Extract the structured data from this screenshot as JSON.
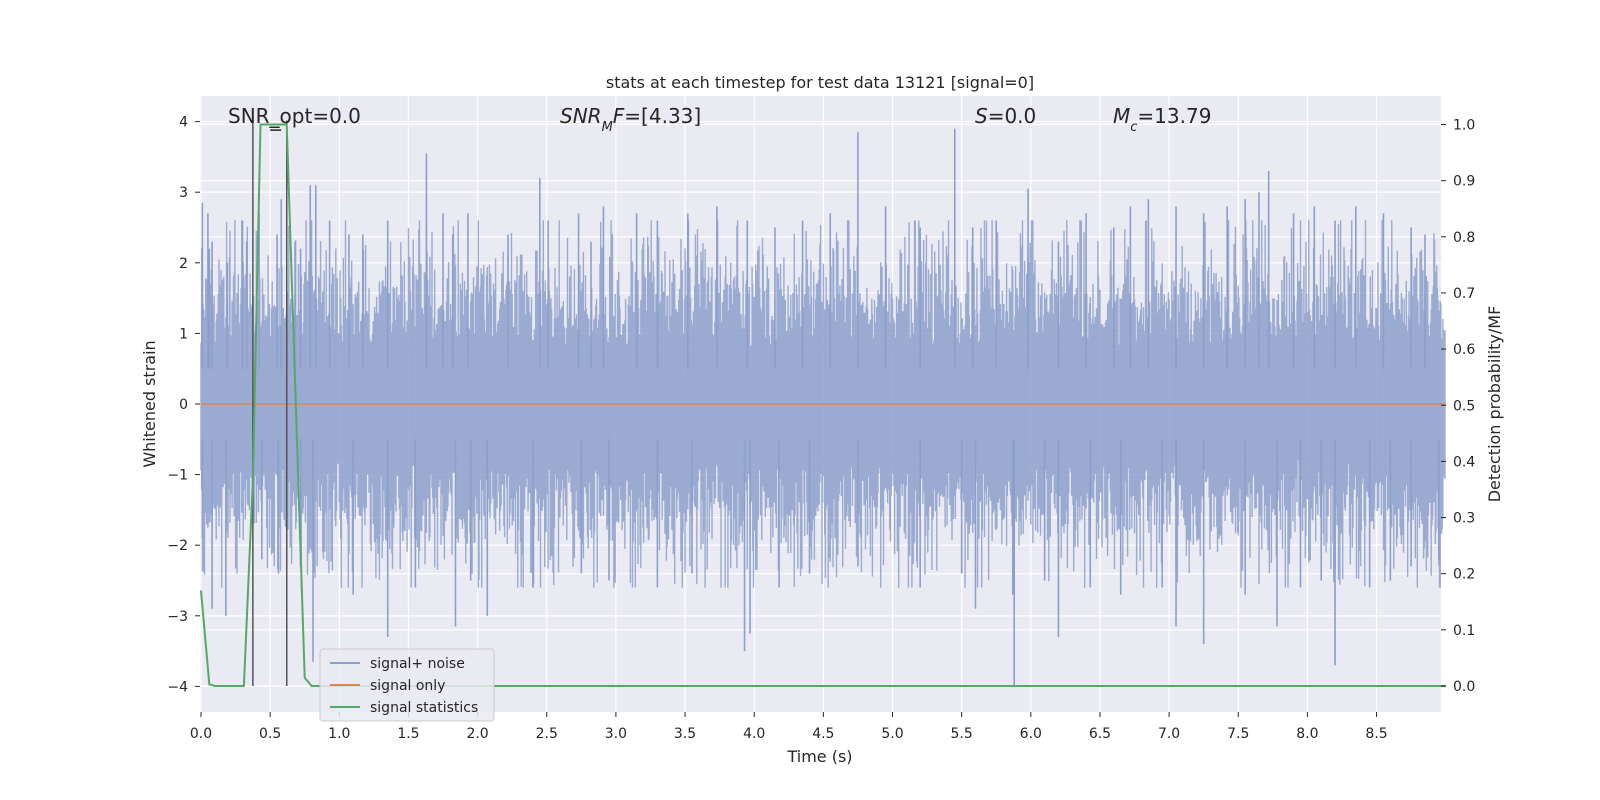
{
  "chart_data": {
    "type": "line",
    "title": "stats at each timestep for test data 13121 [signal=0]",
    "xlabel": "Time (s)",
    "ylabel": "Whitened strain",
    "ylabel_right": "Detection probability/MF",
    "xlim": [
      0.0,
      9.0
    ],
    "ylim": [
      -4.4,
      4.3
    ],
    "ylim_right": [
      -0.05,
      1.045
    ],
    "xticks": [
      "0.0",
      "0.5",
      "1.0",
      "1.5",
      "2.0",
      "2.5",
      "3.0",
      "3.5",
      "4.0",
      "4.5",
      "5.0",
      "5.5",
      "6.0",
      "6.5",
      "7.0",
      "7.5",
      "8.0",
      "8.5"
    ],
    "yticks": [
      "−4",
      "−3",
      "−2",
      "−1",
      "0",
      "1",
      "2",
      "3",
      "4"
    ],
    "yticks_right": [
      "0.0",
      "0.1",
      "0.2",
      "0.3",
      "0.4",
      "0.5",
      "0.6",
      "0.7",
      "0.8",
      "0.9",
      "1.0"
    ],
    "grid": true,
    "legend_position": "bottom-left",
    "annotations": [
      {
        "id": "snr-opt",
        "segments": [
          {
            "text": "SNR_opt=0.0",
            "italic": false
          }
        ]
      },
      {
        "id": "snr-mf",
        "segments": [
          {
            "text": "SNR",
            "italic": true
          },
          {
            "text": "M",
            "italic": true,
            "sub": true
          },
          {
            "text": "F",
            "italic": true
          },
          {
            "text": "=[4.33]",
            "italic": false
          }
        ]
      },
      {
        "id": "s-stat",
        "segments": [
          {
            "text": "S",
            "italic": true
          },
          {
            "text": "=0.0",
            "italic": false
          }
        ]
      },
      {
        "id": "chirp-mass",
        "segments": [
          {
            "text": "M",
            "italic": true
          },
          {
            "text": "c",
            "italic": true,
            "sub": true
          },
          {
            "text": "=13.79",
            "italic": false
          }
        ]
      }
    ],
    "vertical_markers_x": [
      0.375,
      0.62
    ],
    "series": [
      {
        "name": "signal+ noise",
        "color": "#8c9fcb",
        "axis": "left",
        "sample_rate_hz": 200,
        "spikes_up": [
          [
            0.01,
            2.85
          ],
          [
            0.05,
            2.7
          ],
          [
            0.06,
            2.2
          ],
          [
            0.08,
            2.3
          ],
          [
            0.19,
            2.0
          ],
          [
            0.3,
            2.6
          ],
          [
            0.33,
            2.3
          ],
          [
            0.42,
            2.7
          ],
          [
            0.55,
            2.4
          ],
          [
            0.58,
            2.9
          ],
          [
            0.62,
            1.8
          ],
          [
            0.68,
            2.3
          ],
          [
            0.72,
            2.2
          ],
          [
            0.79,
            3.1
          ],
          [
            0.83,
            3.1
          ],
          [
            0.93,
            2.6
          ],
          [
            1.07,
            2.4
          ],
          [
            1.17,
            2.4
          ],
          [
            1.35,
            2.6
          ],
          [
            1.63,
            3.55
          ],
          [
            1.75,
            2.7
          ],
          [
            1.82,
            2.4
          ],
          [
            1.93,
            2.7
          ],
          [
            2.22,
            2.4
          ],
          [
            2.45,
            3.2
          ],
          [
            2.51,
            2.6
          ],
          [
            2.73,
            2.7
          ],
          [
            2.82,
            2.3
          ],
          [
            2.91,
            2.8
          ],
          [
            3.15,
            2.7
          ],
          [
            3.3,
            2.6
          ],
          [
            3.52,
            2.7
          ],
          [
            3.73,
            2.8
          ],
          [
            3.95,
            2.6
          ],
          [
            4.15,
            2.5
          ],
          [
            4.35,
            2.6
          ],
          [
            4.55,
            2.7
          ],
          [
            4.75,
            3.85
          ],
          [
            4.95,
            2.8
          ],
          [
            5.2,
            2.5
          ],
          [
            5.45,
            3.9
          ],
          [
            5.58,
            2.5
          ],
          [
            5.75,
            2.6
          ],
          [
            5.98,
            3.05
          ],
          [
            6.2,
            2.3
          ],
          [
            6.4,
            2.7
          ],
          [
            6.6,
            2.5
          ],
          [
            6.72,
            2.8
          ],
          [
            6.85,
            2.9
          ],
          [
            7.05,
            2.8
          ],
          [
            7.25,
            2.7
          ],
          [
            7.42,
            2.8
          ],
          [
            7.55,
            2.9
          ],
          [
            7.65,
            3.0
          ],
          [
            7.72,
            3.3
          ],
          [
            7.9,
            2.7
          ],
          [
            8.05,
            2.8
          ],
          [
            8.2,
            2.6
          ],
          [
            8.35,
            2.8
          ],
          [
            8.55,
            2.7
          ],
          [
            8.75,
            2.5
          ],
          [
            8.85,
            2.4
          ]
        ],
        "spikes_down": [
          [
            0.01,
            -1.9
          ],
          [
            0.08,
            -2.9
          ],
          [
            0.18,
            -3.0
          ],
          [
            0.44,
            -2.2
          ],
          [
            0.56,
            -2.4
          ],
          [
            0.72,
            -2.3
          ],
          [
            0.81,
            -3.65
          ],
          [
            1.1,
            -2.7
          ],
          [
            1.35,
            -3.3
          ],
          [
            1.55,
            -2.6
          ],
          [
            1.84,
            -3.15
          ],
          [
            1.95,
            -2.5
          ],
          [
            2.07,
            -3.0
          ],
          [
            2.4,
            -2.6
          ],
          [
            2.75,
            -2.4
          ],
          [
            2.95,
            -2.5
          ],
          [
            3.3,
            -2.6
          ],
          [
            3.55,
            -2.4
          ],
          [
            3.93,
            -3.5
          ],
          [
            3.97,
            -3.25
          ],
          [
            4.18,
            -2.6
          ],
          [
            4.4,
            -2.4
          ],
          [
            4.75,
            -2.3
          ],
          [
            5.2,
            -2.6
          ],
          [
            5.5,
            -2.4
          ],
          [
            5.6,
            -2.9
          ],
          [
            5.87,
            -2.7
          ],
          [
            5.88,
            -4.0
          ],
          [
            6.1,
            -2.5
          ],
          [
            6.2,
            -3.3
          ],
          [
            6.43,
            -2.6
          ],
          [
            6.65,
            -2.7
          ],
          [
            6.95,
            -2.6
          ],
          [
            7.05,
            -3.15
          ],
          [
            7.25,
            -3.4
          ],
          [
            7.55,
            -2.7
          ],
          [
            7.78,
            -3.15
          ],
          [
            7.95,
            -2.6
          ],
          [
            8.1,
            -2.5
          ],
          [
            8.2,
            -3.7
          ],
          [
            8.45,
            -2.6
          ],
          [
            8.6,
            -2.5
          ],
          [
            8.75,
            -2.3
          ],
          [
            8.95,
            -2.2
          ]
        ]
      },
      {
        "name": "signal only",
        "color": "#dd8452",
        "axis": "left",
        "x": [
          0.0,
          9.0
        ],
        "y": [
          0.0,
          0.0
        ]
      },
      {
        "name": "signal statistics",
        "color": "#55a868",
        "axis": "right",
        "x": [
          0.0,
          0.06,
          0.1,
          0.31,
          0.375,
          0.43,
          0.46,
          0.62,
          0.75,
          0.8,
          0.84,
          9.0
        ],
        "y": [
          0.17,
          0.003,
          0.0,
          0.0,
          0.37,
          1.0,
          1.0,
          1.0,
          0.015,
          0.0,
          0.0,
          0.0
        ]
      }
    ]
  }
}
